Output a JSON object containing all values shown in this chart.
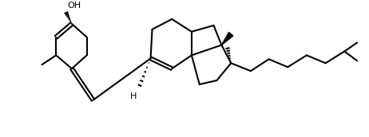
{
  "bg_color": "#ffffff",
  "line_color": "#000000",
  "linewidth": 1.5,
  "figsize": [
    4.62,
    1.72
  ],
  "dpi": 100,
  "OH_label": "OH",
  "H_label": "H",
  "font_size": 8
}
